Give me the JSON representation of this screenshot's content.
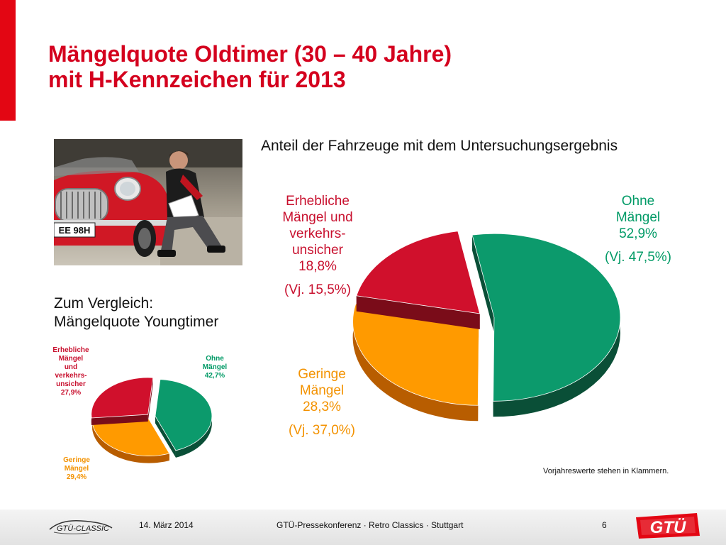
{
  "slide": {
    "title_line1": "Mängelquote Oldtimer (30 – 40 Jahre)",
    "title_line2": "mit H-Kennzeichen für 2013",
    "chart_heading": "Anteil der Fahrzeuge mit dem Untersuchungsergebnis",
    "compare_line1": "Zum Vergleich:",
    "compare_line2": "Mängelquote Youngtimer",
    "note": "Vorjahreswerte stehen in Klammern.",
    "photo_plate": "EE 98H"
  },
  "labels": {
    "main": {
      "erheblich": [
        "Erhebliche",
        "Mängel und",
        "verkehrs-",
        "unsicher",
        "18,8%"
      ],
      "erheblich_prev": "(Vj. 15,5%)",
      "ohne": [
        "Ohne",
        "Mängel",
        "52,9%"
      ],
      "ohne_prev": "(Vj. 47,5%)",
      "gering": [
        "Geringe",
        "Mängel",
        "28,3%"
      ],
      "gering_prev": "(Vj. 37,0%)"
    },
    "small": {
      "erheblich": [
        "Erhebliche",
        "Mängel",
        "und",
        "verkehrs-",
        "unsicher",
        "27,9%"
      ],
      "ohne": [
        "Ohne",
        "Mängel",
        "42,7%"
      ],
      "gering": [
        "Geringe",
        "Mängel",
        "29,4%"
      ]
    }
  },
  "footer": {
    "date": "14. März 2014",
    "center": "GTÜ-Pressekonferenz · Retro Classics · Stuttgart",
    "page": "6",
    "logo_left": "GTÜ-CLASSIC",
    "logo_right": "GTÜ"
  },
  "colors": {
    "accent_red": "#e30613",
    "title_red": "#d4011e",
    "slice_red": "#d0102c",
    "slice_green": "#0c9a6c",
    "slice_orange": "#ff9a00"
  },
  "chart_data": [
    {
      "type": "pie",
      "title": "Anteil der Fahrzeuge mit dem Untersuchungsergebnis",
      "categories": [
        "Ohne Mängel",
        "Geringe Mängel",
        "Erhebliche Mängel und verkehrsunsicher"
      ],
      "values": [
        52.9,
        28.3,
        18.8
      ],
      "previous_year_values": [
        47.5,
        37.0,
        15.5
      ],
      "unit": "%"
    },
    {
      "type": "pie",
      "title": "Mängelquote Youngtimer",
      "categories": [
        "Ohne Mängel",
        "Geringe Mängel",
        "Erhebliche Mängel und verkehrsunsicher"
      ],
      "values": [
        42.7,
        29.4,
        27.9
      ],
      "unit": "%"
    }
  ]
}
